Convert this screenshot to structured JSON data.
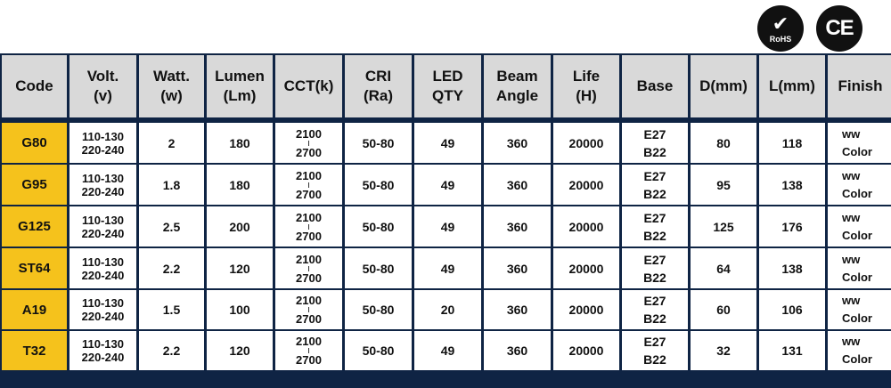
{
  "certifications": [
    {
      "name": "rohs-badge",
      "mark": "✔",
      "label": "RoHS"
    },
    {
      "name": "ce-badge",
      "mark": "",
      "label": "CE"
    }
  ],
  "headers": [
    {
      "line1": "Code",
      "line2": ""
    },
    {
      "line1": "Volt.",
      "line2": "(v)"
    },
    {
      "line1": "Watt.",
      "line2": "(w)"
    },
    {
      "line1": "Lumen",
      "line2": "(Lm)"
    },
    {
      "line1": "CCT(k)",
      "line2": ""
    },
    {
      "line1": "CRI",
      "line2": "(Ra)"
    },
    {
      "line1": "LED",
      "line2": "QTY"
    },
    {
      "line1": "Beam",
      "line2": "Angle"
    },
    {
      "line1": "Life",
      "line2": "(H)"
    },
    {
      "line1": "Base",
      "line2": ""
    },
    {
      "line1": "D(mm)",
      "line2": ""
    },
    {
      "line1": "L(mm)",
      "line2": ""
    },
    {
      "line1": "Finish",
      "line2": ""
    }
  ],
  "rows": [
    {
      "code": "G80",
      "volt1": "110-130",
      "volt2": "220-240",
      "watt": "2",
      "lumen": "180",
      "cct1": "2100",
      "cct2": "2700",
      "cri": "50-80",
      "led_qty": "49",
      "beam": "360",
      "life": "20000",
      "base1": "E27",
      "base2": "B22",
      "d": "80",
      "l": "118",
      "finish1": "ww",
      "finish2": "Color"
    },
    {
      "code": "G95",
      "volt1": "110-130",
      "volt2": "220-240",
      "watt": "1.8",
      "lumen": "180",
      "cct1": "2100",
      "cct2": "2700",
      "cri": "50-80",
      "led_qty": "49",
      "beam": "360",
      "life": "20000",
      "base1": "E27",
      "base2": "B22",
      "d": "95",
      "l": "138",
      "finish1": "ww",
      "finish2": "Color"
    },
    {
      "code": "G125",
      "volt1": "110-130",
      "volt2": "220-240",
      "watt": "2.5",
      "lumen": "200",
      "cct1": "2100",
      "cct2": "2700",
      "cri": "50-80",
      "led_qty": "49",
      "beam": "360",
      "life": "20000",
      "base1": "E27",
      "base2": "B22",
      "d": "125",
      "l": "176",
      "finish1": "ww",
      "finish2": "Color"
    },
    {
      "code": "ST64",
      "volt1": "110-130",
      "volt2": "220-240",
      "watt": "2.2",
      "lumen": "120",
      "cct1": "2100",
      "cct2": "2700",
      "cri": "50-80",
      "led_qty": "49",
      "beam": "360",
      "life": "20000",
      "base1": "E27",
      "base2": "B22",
      "d": "64",
      "l": "138",
      "finish1": "ww",
      "finish2": "Color"
    },
    {
      "code": "A19",
      "volt1": "110-130",
      "volt2": "220-240",
      "watt": "1.5",
      "lumen": "100",
      "cct1": "2100",
      "cct2": "2700",
      "cri": "50-80",
      "led_qty": "20",
      "beam": "360",
      "life": "20000",
      "base1": "E27",
      "base2": "B22",
      "d": "60",
      "l": "106",
      "finish1": "ww",
      "finish2": "Color"
    },
    {
      "code": "T32",
      "volt1": "110-130",
      "volt2": "220-240",
      "watt": "2.2",
      "lumen": "120",
      "cct1": "2100",
      "cct2": "2700",
      "cri": "50-80",
      "led_qty": "49",
      "beam": "360",
      "life": "20000",
      "base1": "E27",
      "base2": "B22",
      "d": "32",
      "l": "131",
      "finish1": "ww",
      "finish2": "Color"
    }
  ],
  "colors": {
    "border": "#0f2444",
    "header_bg": "#d9d9d9",
    "code_bg": "#f5c21c"
  }
}
